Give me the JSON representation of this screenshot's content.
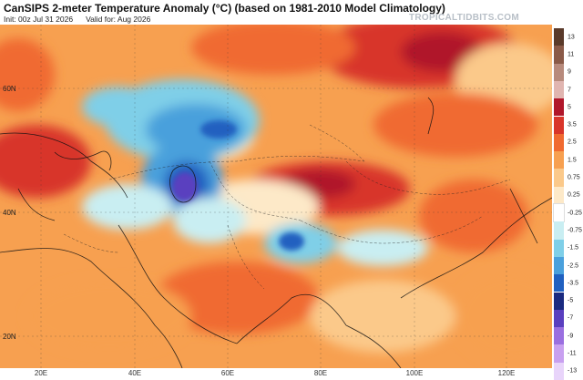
{
  "header": {
    "title": "CanSIPS 2-meter Temperature Anomaly (°C) (based on 1981-2010 Model Climatology)",
    "init": "Init: 00z Jul 31 2026",
    "valid": "Valid for: Aug 2026",
    "brand": "TROPICALTIDBITS.COM"
  },
  "axes": {
    "lon_labels": [
      "20E",
      "40E",
      "60E",
      "80E",
      "100E",
      "120E"
    ],
    "lat_labels": [
      "60N",
      "40N",
      "20N"
    ]
  },
  "colorbar": {
    "labels": [
      "13",
      "11",
      "9",
      "7",
      "5",
      "3.5",
      "2.5",
      "1.5",
      "0.75",
      "0.25",
      "-0.25",
      "-0.75",
      "-1.5",
      "-2.5",
      "-3.5",
      "-5",
      "-7",
      "-9",
      "-11",
      "-13"
    ],
    "colors": [
      "#5a3a2a",
      "#8a5a48",
      "#b78a7c",
      "#e0b5b0",
      "#b0162a",
      "#d8352a",
      "#f06a30",
      "#f7a050",
      "#fbc98a",
      "#fde9c8",
      "#ffffff",
      "#c9eef2",
      "#7fcfe8",
      "#4aa0dc",
      "#2060c0",
      "#1a2a80",
      "#5a3fbf",
      "#9a6fe0",
      "#c8a0f0",
      "#e8d4fa"
    ]
  }
}
